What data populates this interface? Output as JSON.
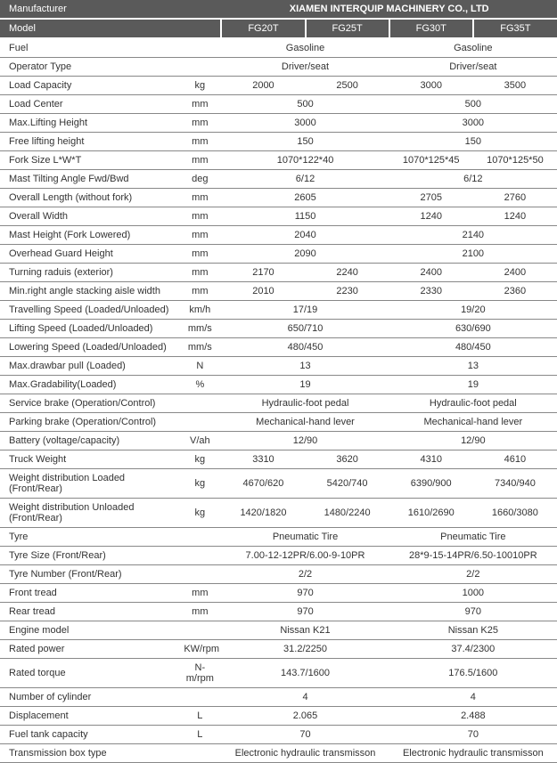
{
  "header": {
    "manufacturer_label": "Manufacturer",
    "manufacturer_value": "XIAMEN INTERQUIP MACHINERY CO., LTD",
    "model_label": "Model",
    "models": [
      "FG20T",
      "FG25T",
      "FG30T",
      "FG35T"
    ]
  },
  "colors": {
    "header_bg": "#5a5a5a",
    "header_fg": "#ffffff",
    "row_border": "#888888"
  },
  "rows": [
    {
      "label": "Fuel",
      "unit": "",
      "span": "pair",
      "left": "Gasoline",
      "right": "Gasoline"
    },
    {
      "label": "Operator Type",
      "unit": "",
      "span": "pair",
      "left": "Driver/seat",
      "right": "Driver/seat"
    },
    {
      "label": "Load Capacity",
      "unit": "kg",
      "span": "four",
      "v": [
        "2000",
        "2500",
        "3000",
        "3500"
      ]
    },
    {
      "label": "Load Center",
      "unit": "mm",
      "span": "pair",
      "left": "500",
      "right": "500"
    },
    {
      "label": "Max.Lifting Height",
      "unit": "mm",
      "span": "pair",
      "left": "3000",
      "right": "3000"
    },
    {
      "label": "Free lifting height",
      "unit": "mm",
      "span": "pair",
      "left": "150",
      "right": "150"
    },
    {
      "label": "Fork Size  L*W*T",
      "unit": "mm",
      "span": "mixed",
      "left": "1070*122*40",
      "r1": "1070*125*45",
      "r2": "1070*125*50"
    },
    {
      "label": "Mast Tilting Angle  Fwd/Bwd",
      "unit": "deg",
      "span": "pair",
      "left": "6/12",
      "right": "6/12"
    },
    {
      "label": "Overall Length (without fork)",
      "unit": "mm",
      "span": "mixed",
      "left": "2605",
      "r1": "2705",
      "r2": "2760"
    },
    {
      "label": "Overall Width",
      "unit": "mm",
      "span": "mixed",
      "left": "1150",
      "r1": "1240",
      "r2": "1240"
    },
    {
      "label": "Mast Height (Fork Lowered)",
      "unit": "mm",
      "span": "pair",
      "left": "2040",
      "right": "2140"
    },
    {
      "label": "Overhead Guard Height",
      "unit": "mm",
      "span": "pair",
      "left": "2090",
      "right": "2100"
    },
    {
      "label": "Turning raduis (exterior)",
      "unit": "mm",
      "span": "four",
      "v": [
        "2170",
        "2240",
        "2400",
        "2400"
      ]
    },
    {
      "label": "Min.right angle stacking aisle width",
      "unit": "mm",
      "span": "four",
      "v": [
        "2010",
        "2230",
        "2330",
        "2360"
      ]
    },
    {
      "label": "Travelling Speed (Loaded/Unloaded)",
      "unit": "km/h",
      "span": "pair",
      "left": "17/19",
      "right": "19/20"
    },
    {
      "label": "Lifting Speed (Loaded/Unloaded)",
      "unit": "mm/s",
      "span": "pair",
      "left": "650/710",
      "right": "630/690"
    },
    {
      "label": "Lowering Speed (Loaded/Unloaded)",
      "unit": "mm/s",
      "span": "pair",
      "left": "480/450",
      "right": "480/450"
    },
    {
      "label": "Max.drawbar pull (Loaded)",
      "unit": "N",
      "span": "pair",
      "left": "13",
      "right": "13"
    },
    {
      "label": "Max.Gradability(Loaded)",
      "unit": "%",
      "span": "pair",
      "left": "19",
      "right": "19"
    },
    {
      "label": "Service brake (Operation/Control)",
      "unit": "",
      "span": "pair",
      "left": "Hydraulic-foot pedal",
      "right": "Hydraulic-foot pedal"
    },
    {
      "label": "Parking brake (Operation/Control)",
      "unit": "",
      "span": "pair",
      "left": "Mechanical-hand lever",
      "right": "Mechanical-hand lever"
    },
    {
      "label": "Battery (voltage/capacity)",
      "unit": "V/ah",
      "span": "pair",
      "left": "12/90",
      "right": "12/90"
    },
    {
      "label": "Truck Weight",
      "unit": "kg",
      "span": "four",
      "v": [
        "3310",
        "3620",
        "4310",
        "4610"
      ]
    },
    {
      "label": "Weight distribution Loaded (Front/Rear)",
      "unit": "kg",
      "span": "four",
      "v": [
        "4670/620",
        "5420/740",
        "6390/900",
        "7340/940"
      ]
    },
    {
      "label": "Weight distribution Unloaded (Front/Rear)",
      "unit": "kg",
      "span": "four",
      "v": [
        "1420/1820",
        "1480/2240",
        "1610/2690",
        "1660/3080"
      ]
    },
    {
      "label": "Tyre",
      "unit": "",
      "span": "pair",
      "left": "Pneumatic Tire",
      "right": "Pneumatic Tire"
    },
    {
      "label": "Tyre Size  (Front/Rear)",
      "unit": "",
      "span": "pair",
      "left": "7.00-12-12PR/6.00-9-10PR",
      "right": "28*9-15-14PR/6.50-10010PR"
    },
    {
      "label": "Tyre Number  (Front/Rear)",
      "unit": "",
      "span": "pair",
      "left": "2/2",
      "right": "2/2"
    },
    {
      "label": "Front tread",
      "unit": "mm",
      "span": "pair",
      "left": "970",
      "right": "1000"
    },
    {
      "label": "Rear tread",
      "unit": "mm",
      "span": "pair",
      "left": "970",
      "right": "970"
    },
    {
      "label": "Engine model",
      "unit": "",
      "span": "pair",
      "left": "Nissan K21",
      "right": "Nissan K25"
    },
    {
      "label": "Rated power",
      "unit": "KW/rpm",
      "span": "pair",
      "left": "31.2/2250",
      "right": "37.4/2300"
    },
    {
      "label": "Rated torque",
      "unit": "N-m/rpm",
      "span": "pair",
      "left": "143.7/1600",
      "right": "176.5/1600"
    },
    {
      "label": "Number of cylinder",
      "unit": "",
      "span": "pair",
      "left": "4",
      "right": "4"
    },
    {
      "label": "Displacement",
      "unit": "L",
      "span": "pair",
      "left": "2.065",
      "right": "2.488"
    },
    {
      "label": "Fuel tank capacity",
      "unit": "L",
      "span": "pair",
      "left": "70",
      "right": "70"
    },
    {
      "label": "Transmission box type",
      "unit": "",
      "span": "pair",
      "left": "Electronic hydraulic transmisson",
      "right": "Electronic hydraulic transmisson"
    }
  ]
}
